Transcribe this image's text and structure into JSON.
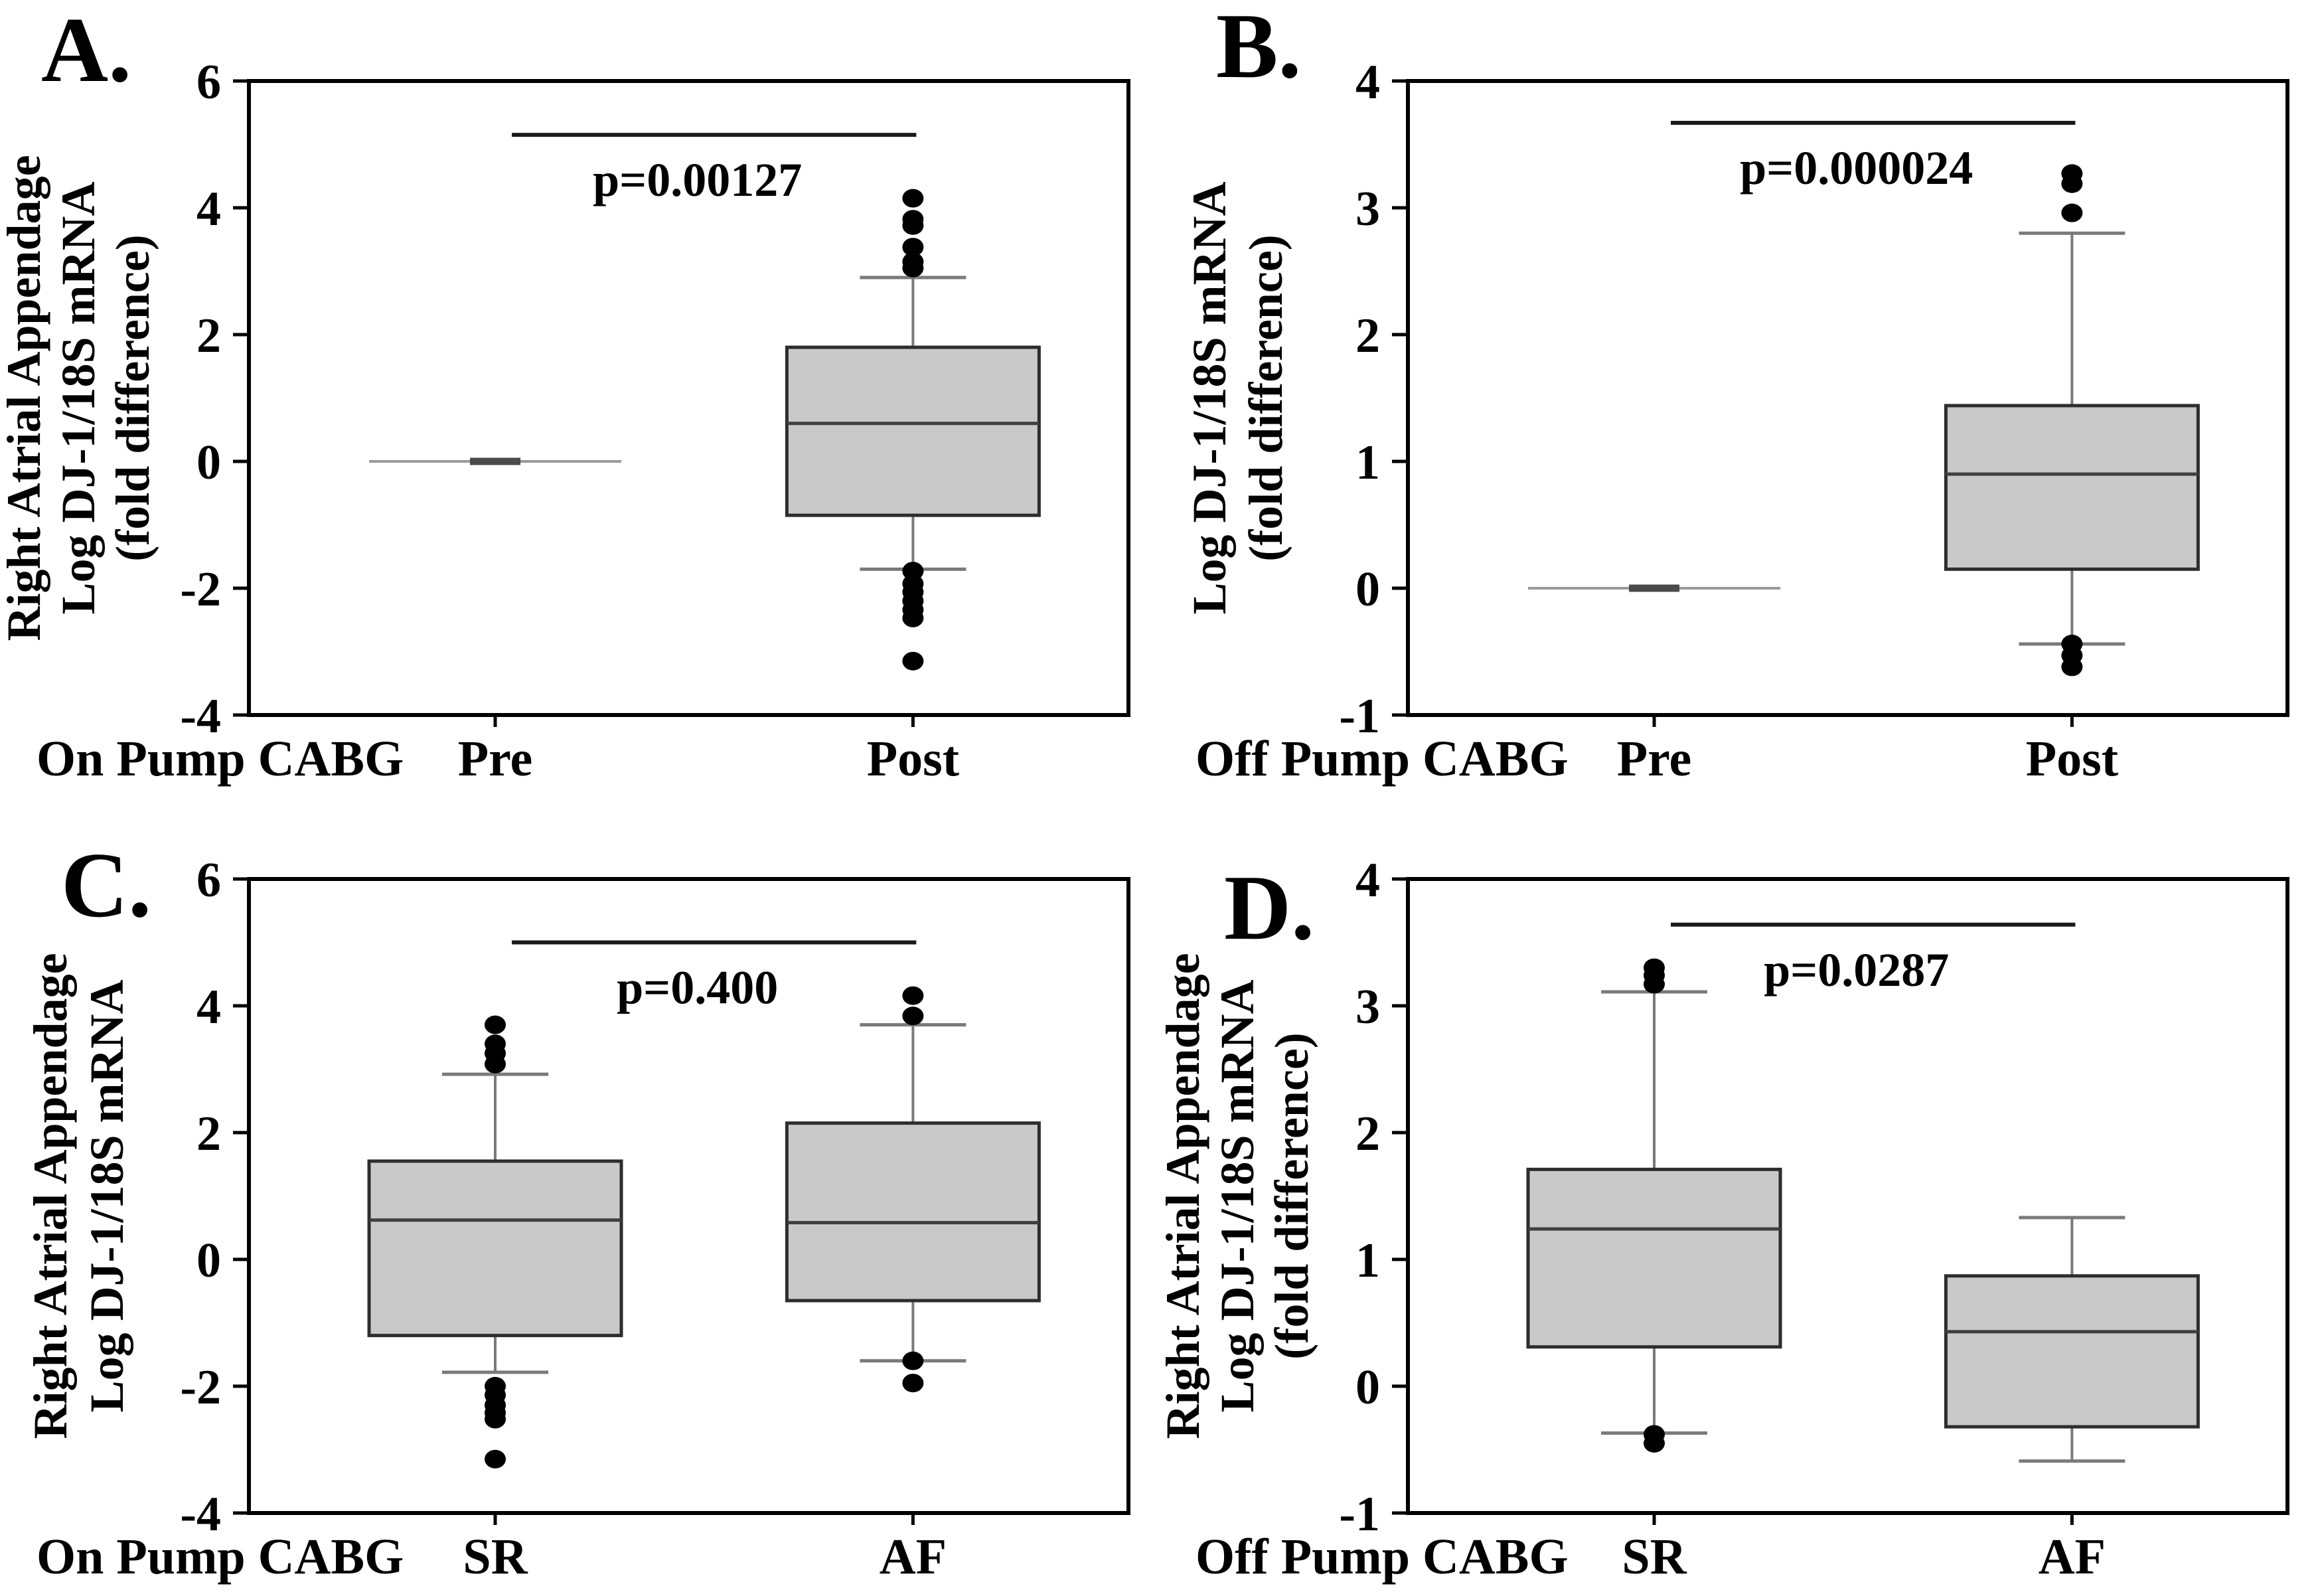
{
  "figure": {
    "background": "#ffffff",
    "description_visible_text_only": true
  },
  "styles": {
    "frame_color": "#000000",
    "sig_line_color": "#1a1a1a",
    "box_fill": "#c9c9c9",
    "box_border": "#2d2d2d",
    "median_color": "#3f3f3f",
    "whisker_color": "#7a7a7a",
    "flat_line_color": "#9a9a9a",
    "flat_mark_color": "#4a4a4a",
    "dot_color": "#000000",
    "text_color": "#000000"
  },
  "chart_data": [
    {
      "panel": "A.",
      "type": "box",
      "ylim": [
        -4,
        6
      ],
      "yticks": [
        6,
        4,
        2,
        0,
        -2,
        -4
      ],
      "ylabel_lines": [
        "Right Atrial Appendage",
        "Log DJ-1/18S mRNA",
        "(fold difference)"
      ],
      "group_label": "On Pump CABG",
      "categories": [
        "Pre",
        "Post"
      ],
      "p_label": "p=0.00127",
      "sig_y": 5.15,
      "boxes": [
        {
          "category": "Pre",
          "flat_value": 0
        },
        {
          "category": "Post",
          "q1": -0.85,
          "median": 0.6,
          "q3": 1.8,
          "whisker_low": -1.7,
          "whisker_high": 2.9,
          "outliers_high": [
            4.15,
            3.82,
            3.72,
            3.38,
            3.15,
            3.05
          ],
          "outliers_low": [
            -1.73,
            -1.93,
            -2.06,
            -2.2,
            -2.34,
            -2.47,
            -3.15
          ]
        }
      ]
    },
    {
      "panel": "B.",
      "type": "box",
      "ylim": [
        -1,
        4
      ],
      "yticks": [
        4,
        3,
        2,
        1,
        0,
        -1
      ],
      "ylabel_lines": [
        "Log DJ-1/18S mRNA",
        "(fold difference)"
      ],
      "group_label": "Off Pump CABG",
      "categories": [
        "Pre",
        "Post"
      ],
      "p_label": "p=0.000024",
      "sig_y": 3.67,
      "boxes": [
        {
          "category": "Pre",
          "flat_value": 0
        },
        {
          "category": "Post",
          "q1": 0.15,
          "median": 0.9,
          "q3": 1.44,
          "whisker_low": -0.44,
          "whisker_high": 2.8,
          "outliers_high": [
            3.27,
            3.19,
            2.96
          ],
          "outliers_low": [
            -0.44,
            -0.53,
            -0.62
          ]
        }
      ]
    },
    {
      "panel": "C.",
      "type": "box",
      "ylim": [
        -4,
        6
      ],
      "yticks": [
        6,
        4,
        2,
        0,
        -2,
        -4
      ],
      "ylabel_lines": [
        "Right Atrial Appendage",
        "Log DJ-1/18S mRNA"
      ],
      "group_label": "On Pump CABG",
      "categories": [
        "SR",
        "AF"
      ],
      "p_label": "p=0.400",
      "sig_y": 5.0,
      "boxes": [
        {
          "category": "SR",
          "q1": -1.2,
          "median": 0.62,
          "q3": 1.55,
          "whisker_low": -1.78,
          "whisker_high": 2.92,
          "outliers_high": [
            3.7,
            3.4,
            3.25,
            3.08
          ],
          "outliers_low": [
            -2.0,
            -2.14,
            -2.3,
            -2.42,
            -2.52,
            -3.15
          ]
        },
        {
          "category": "AF",
          "q1": -0.65,
          "median": 0.58,
          "q3": 2.15,
          "whisker_low": -1.6,
          "whisker_high": 3.7,
          "outliers_high": [
            4.16,
            3.84
          ],
          "outliers_low": [
            -1.6,
            -1.95
          ]
        }
      ]
    },
    {
      "panel": "D.",
      "type": "box",
      "ylim": [
        -1,
        4
      ],
      "yticks": [
        4,
        3,
        2,
        1,
        0,
        -1
      ],
      "ylabel_lines": [
        "Right Atrial Appendage",
        "Log DJ-1/18S mRNA",
        "(fold difference)"
      ],
      "group_label": "Off Pump CABG",
      "categories": [
        "SR",
        "AF"
      ],
      "p_label": "p=0.0287",
      "sig_y": 3.64,
      "boxes": [
        {
          "category": "SR",
          "q1": 0.31,
          "median": 1.24,
          "q3": 1.71,
          "whisker_low": -0.37,
          "whisker_high": 3.11,
          "outliers_high": [
            3.3,
            3.24,
            3.17
          ],
          "outliers_low": [
            -0.38,
            -0.45
          ]
        },
        {
          "category": "AF",
          "q1": -0.32,
          "median": 0.43,
          "q3": 0.87,
          "whisker_low": -0.59,
          "whisker_high": 1.33,
          "outliers_high": [],
          "outliers_low": []
        }
      ]
    }
  ]
}
